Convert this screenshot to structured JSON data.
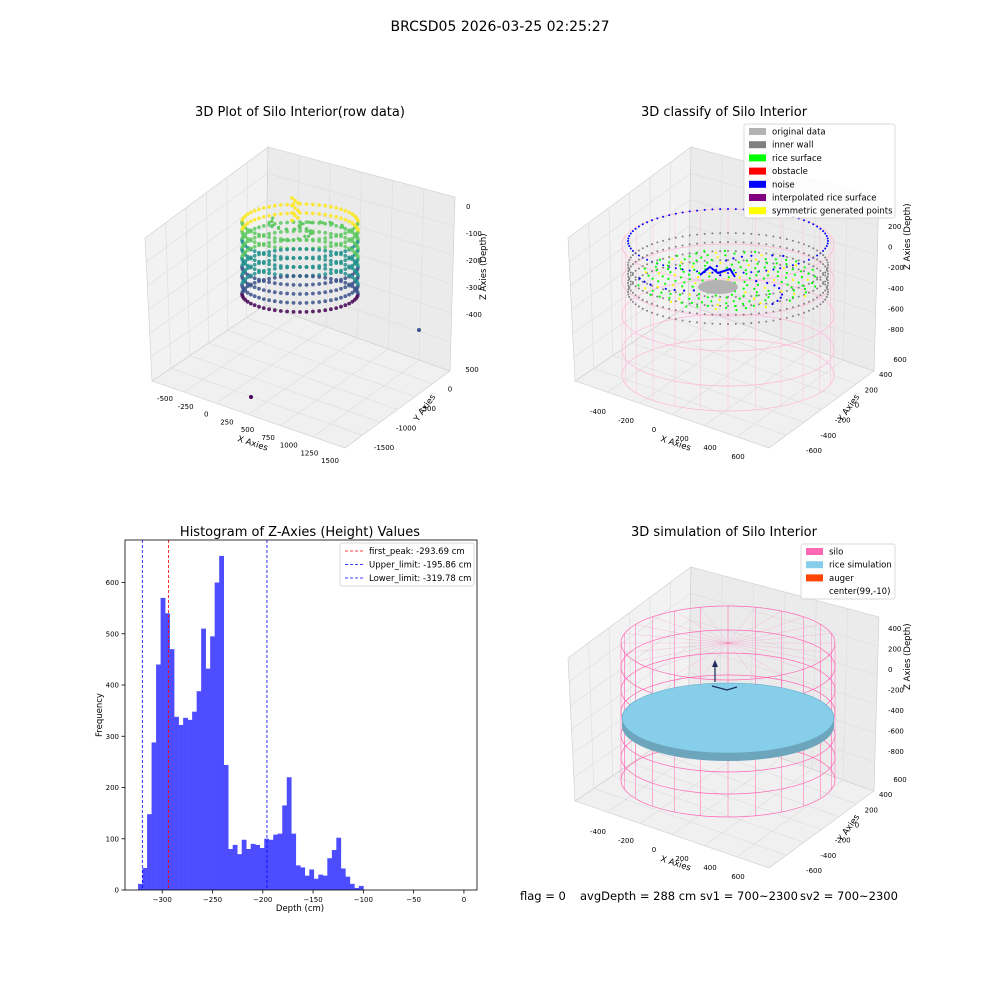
{
  "figure": {
    "suptitle": "BRCSD05 2026-03-25 02:25:27",
    "footer": {
      "flag": "flag = 0",
      "avg_depth": "avgDepth = 288 cm",
      "sv1": "sv1 = 700~2300",
      "sv2": "sv2 = 700~2300"
    }
  },
  "chart_data": [
    {
      "type": "scatter",
      "projection": "3d",
      "title": "3D Plot of Silo Interior(row data)",
      "xlabel": "X Axies",
      "ylabel": "Y Axies",
      "zlabel": "Z Axies (Depth)",
      "x_ticks": [
        "-500",
        "-250",
        "0",
        "250",
        "500",
        "750",
        "1000",
        "1250",
        "1500"
      ],
      "y_ticks": [
        "-1500",
        "-1000",
        "-500",
        "0",
        "500"
      ],
      "z_ticks": [
        "0",
        "-100",
        "-200",
        "-300",
        "-400"
      ],
      "xlim": [
        -600,
        1550
      ],
      "ylim": [
        -1650,
        650
      ],
      "zlim": [
        -450,
        10
      ],
      "colormap": [
        "#440154",
        "#3b528b",
        "#21918c",
        "#5ec962",
        "#fde725"
      ],
      "outliers": [
        {
          "x": 300,
          "y": -1500,
          "z": -420
        },
        {
          "x": 1450,
          "y": 200,
          "z": -430
        }
      ],
      "grid": true
    },
    {
      "type": "scatter",
      "projection": "3d",
      "title": "3D classify of Silo Interior",
      "xlabel": "X Axies",
      "ylabel": "Y Axies",
      "zlabel": "Z Axies (Depth)",
      "x_ticks": [
        "-400",
        "-200",
        "0",
        "200",
        "400",
        "600"
      ],
      "y_ticks": [
        "-600",
        "-400",
        "-200",
        "0",
        "200",
        "400",
        "600"
      ],
      "z_ticks": [
        "200",
        "0",
        "-200",
        "-400",
        "-600",
        "-800"
      ],
      "legend_position": "top-right",
      "legend": [
        {
          "label": "original data",
          "color": "#b3b3b3"
        },
        {
          "label": "inner wall",
          "color": "#808080"
        },
        {
          "label": "rice surface",
          "color": "#00ff00"
        },
        {
          "label": "obstacle",
          "color": "#ff0000"
        },
        {
          "label": "noise",
          "color": "#0000ff"
        },
        {
          "label": "interpolated rice surface",
          "color": "#800080"
        },
        {
          "label": "symmetric generated points",
          "color": "#ffff00"
        }
      ],
      "grid": true
    },
    {
      "type": "bar",
      "title": "Histogram of Z-Axies (Height) Values",
      "xlabel": "Depth (cm)",
      "ylabel": "Frequency",
      "x_ticks": [
        -300,
        -250,
        -200,
        -150,
        -100,
        -50,
        0
      ],
      "y_ticks": [
        0,
        100,
        200,
        300,
        400,
        500,
        600
      ],
      "xlim": [
        -337,
        13
      ],
      "ylim": [
        0,
        683
      ],
      "bar_color": "#4d4dff",
      "bin_start": -324,
      "bin_width": 4.48,
      "values": [
        12,
        43,
        148,
        288,
        440,
        570,
        540,
        470,
        338,
        322,
        336,
        332,
        348,
        388,
        510,
        432,
        495,
        600,
        652,
        244,
        80,
        88,
        70,
        98,
        80,
        90,
        88,
        82,
        100,
        98,
        108,
        110,
        165,
        220,
        110,
        48,
        44,
        28,
        40,
        22,
        30,
        28,
        62,
        78,
        102,
        42,
        26,
        12,
        4,
        8
      ],
      "reference_lines": [
        {
          "label": "first_peak: -293.69 cm",
          "value": -293.69,
          "color": "#ff0000"
        },
        {
          "label": "Upper_limit: -195.86 cm",
          "value": -195.86,
          "color": "#0000ff"
        },
        {
          "label": "Lower_limit: -319.78 cm",
          "value": -319.78,
          "color": "#0000ff"
        }
      ],
      "legend_position": "top-right"
    },
    {
      "type": "scatter",
      "projection": "3d",
      "title": "3D simulation of Silo Interior",
      "xlabel": "X Axies",
      "ylabel": "Y Axies",
      "zlabel": "Z Axies (Depth)",
      "x_ticks": [
        "-400",
        "-200",
        "0",
        "200",
        "400",
        "600"
      ],
      "y_ticks": [
        "-600",
        "-400",
        "-200",
        "0",
        "200",
        "400",
        "600"
      ],
      "z_ticks": [
        "400",
        "200",
        "0",
        "-200",
        "-400",
        "-600",
        "-800"
      ],
      "legend_position": "top-right",
      "legend": [
        {
          "label": "silo",
          "color": "#ff69b4"
        },
        {
          "label": "rice simulation",
          "color": "#87ceeb"
        },
        {
          "label": "auger",
          "color": "#ff4500"
        },
        {
          "label": "center(99,-10)",
          "color": "#ffffff"
        }
      ],
      "grid": true
    }
  ]
}
